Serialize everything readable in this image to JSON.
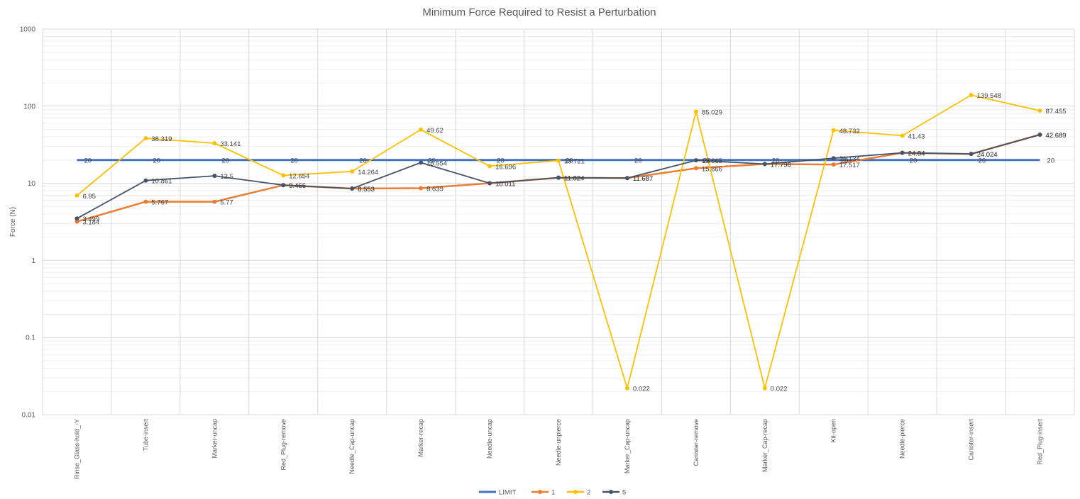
{
  "chart_data": {
    "type": "line",
    "title": "Minimum Force Required to Resist a Perturbation",
    "xlabel": "",
    "ylabel": "Force (N)",
    "yscale": "log",
    "ylim": [
      0.01,
      1000
    ],
    "yticks": [
      "0.01",
      "0.1",
      "1",
      "10",
      "100",
      "1000"
    ],
    "grid": true,
    "legend_position": "bottom",
    "categories": [
      "Rinse_Glass-hold_-Y",
      "Tube-insert",
      "Marker-uncap",
      "Red_Plug-remove",
      "Needle_Cap-uncap",
      "Marker-recap",
      "Needle-uncap",
      "Needle-unpierce",
      "Marker_Cap-uncap",
      "Canister-remove",
      "Marker_Cap-recap",
      "Kit-open",
      "Needle-pierce",
      "Canister-insert",
      "Red_Plug-insert"
    ],
    "series": [
      {
        "name": "LIMIT",
        "color": "#4472C4",
        "values": [
          20,
          20,
          20,
          20,
          20,
          20,
          20,
          20,
          20,
          20,
          20,
          20,
          20,
          20,
          20
        ],
        "labels": [
          "20",
          "20",
          "20",
          "20",
          "20",
          "20",
          "20",
          "20",
          "20",
          "20",
          "20",
          "20",
          "20",
          "20",
          "20"
        ]
      },
      {
        "name": "1",
        "color": "#ED7D31",
        "values": [
          3.184,
          5.767,
          5.77,
          9.466,
          8.553,
          8.639,
          10.011,
          11.824,
          11.687,
          15.666,
          17.796,
          17.517,
          24.84,
          24.024,
          42.689
        ],
        "labels": [
          "3.184",
          "5.767",
          "5.77",
          "9.466",
          "8.553",
          "8.639",
          "10.011",
          "11.824",
          "11.687",
          "15.666",
          "17.796",
          "17.517",
          "24.84",
          "24.024",
          "42.689"
        ]
      },
      {
        "name": "2",
        "color": "#FFC000",
        "values": [
          6.95,
          38.319,
          33.141,
          12.654,
          14.264,
          49.62,
          16.696,
          19.721,
          0.022,
          85.029,
          0.022,
          48.732,
          41.43,
          139.548,
          87.455
        ],
        "labels": [
          "6.95",
          "38.319",
          "33.141",
          "12.654",
          "14.264",
          "49.62",
          "16.696",
          "19.721",
          "0.022",
          "85.029",
          "0.022",
          "48.732",
          "41.43",
          "139.548",
          "87.455"
        ]
      },
      {
        "name": "5",
        "color": "#44546A",
        "values": [
          3.499,
          10.861,
          12.5,
          9.466,
          8.553,
          18.554,
          10.011,
          11.824,
          11.687,
          19.865,
          17.796,
          21.134,
          24.84,
          24.024,
          42.689
        ],
        "labels": [
          "3.499",
          "10.861",
          "12.5",
          "9.466",
          "8.553",
          "18.554",
          "10.011",
          "11.824",
          "11.687",
          "19.865",
          "17.796",
          "21.134",
          "24.84",
          "24.024",
          "42.689"
        ]
      }
    ]
  }
}
